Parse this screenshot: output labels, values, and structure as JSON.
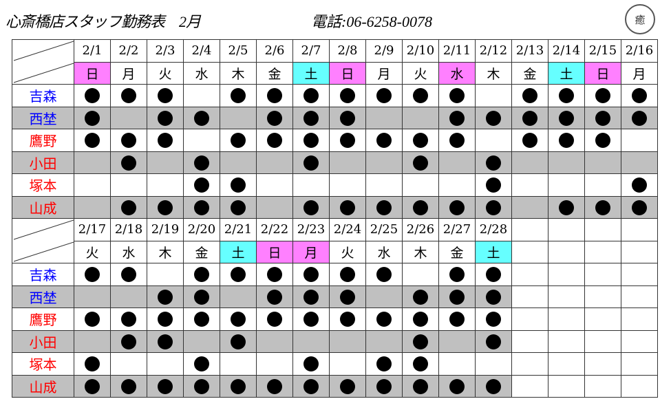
{
  "header": {
    "title": "心斎橋店スタッフ勤務表　2月",
    "phone": "電話:06-6258-0078",
    "logo_text": "癒"
  },
  "colors": {
    "sunday_holiday": "#ff80ff",
    "saturday": "#66ffff",
    "gray_row": "#c0c0c0",
    "name_blue": "#0000ff",
    "name_red": "#ff0000"
  },
  "staff": [
    {
      "name": "吉森",
      "color": "#0000ff"
    },
    {
      "name": "西埜",
      "color": "#0000ff"
    },
    {
      "name": "鷹野",
      "color": "#ff0000"
    },
    {
      "name": "小田",
      "color": "#ff0000"
    },
    {
      "name": "塚本",
      "color": "#ff0000"
    },
    {
      "name": "山成",
      "color": "#ff0000"
    }
  ],
  "blocks": [
    {
      "dates": [
        "2/1",
        "2/2",
        "2/3",
        "2/4",
        "2/5",
        "2/6",
        "2/7",
        "2/8",
        "2/9",
        "2/10",
        "2/11",
        "2/12",
        "2/13",
        "2/14",
        "2/15",
        "2/16"
      ],
      "days": [
        "日",
        "月",
        "火",
        "水",
        "木",
        "金",
        "土",
        "日",
        "月",
        "火",
        "水",
        "木",
        "金",
        "土",
        "日",
        "月"
      ],
      "day_types": [
        "red",
        "",
        "",
        "",
        "",
        "",
        "sat",
        "red",
        "",
        "",
        "red",
        "",
        "",
        "sat",
        "red",
        ""
      ],
      "shifts": [
        [
          1,
          1,
          1,
          0,
          1,
          1,
          1,
          1,
          1,
          1,
          1,
          0,
          1,
          1,
          1,
          1
        ],
        [
          1,
          0,
          1,
          1,
          0,
          1,
          1,
          1,
          0,
          0,
          1,
          1,
          1,
          1,
          1,
          1
        ],
        [
          1,
          1,
          1,
          0,
          1,
          1,
          1,
          1,
          1,
          1,
          1,
          0,
          1,
          1,
          1,
          0
        ],
        [
          0,
          1,
          0,
          1,
          0,
          0,
          1,
          0,
          0,
          1,
          0,
          1,
          0,
          0,
          0,
          0
        ],
        [
          0,
          0,
          0,
          1,
          1,
          0,
          0,
          0,
          0,
          0,
          0,
          1,
          0,
          0,
          0,
          1
        ],
        [
          0,
          1,
          1,
          1,
          1,
          0,
          1,
          1,
          1,
          1,
          1,
          1,
          0,
          1,
          1,
          1
        ]
      ]
    },
    {
      "dates": [
        "2/17",
        "2/18",
        "2/19",
        "2/20",
        "2/21",
        "2/22",
        "2/23",
        "2/24",
        "2/25",
        "2/26",
        "2/27",
        "2/28"
      ],
      "days": [
        "火",
        "水",
        "木",
        "金",
        "土",
        "日",
        "月",
        "火",
        "水",
        "木",
        "金",
        "土"
      ],
      "day_types": [
        "",
        "",
        "",
        "",
        "sat",
        "red",
        "red",
        "",
        "",
        "",
        "",
        "sat"
      ],
      "shifts": [
        [
          1,
          1,
          0,
          1,
          1,
          1,
          1,
          1,
          1,
          0,
          1,
          1
        ],
        [
          0,
          0,
          1,
          1,
          0,
          1,
          1,
          1,
          0,
          1,
          1,
          1
        ],
        [
          1,
          1,
          1,
          1,
          1,
          1,
          1,
          1,
          1,
          1,
          1,
          1
        ],
        [
          0,
          1,
          1,
          0,
          1,
          0,
          0,
          0,
          0,
          1,
          0,
          1
        ],
        [
          1,
          0,
          0,
          1,
          0,
          0,
          1,
          0,
          1,
          1,
          0,
          0
        ],
        [
          1,
          1,
          1,
          1,
          1,
          1,
          1,
          1,
          1,
          1,
          1,
          1
        ]
      ]
    }
  ]
}
